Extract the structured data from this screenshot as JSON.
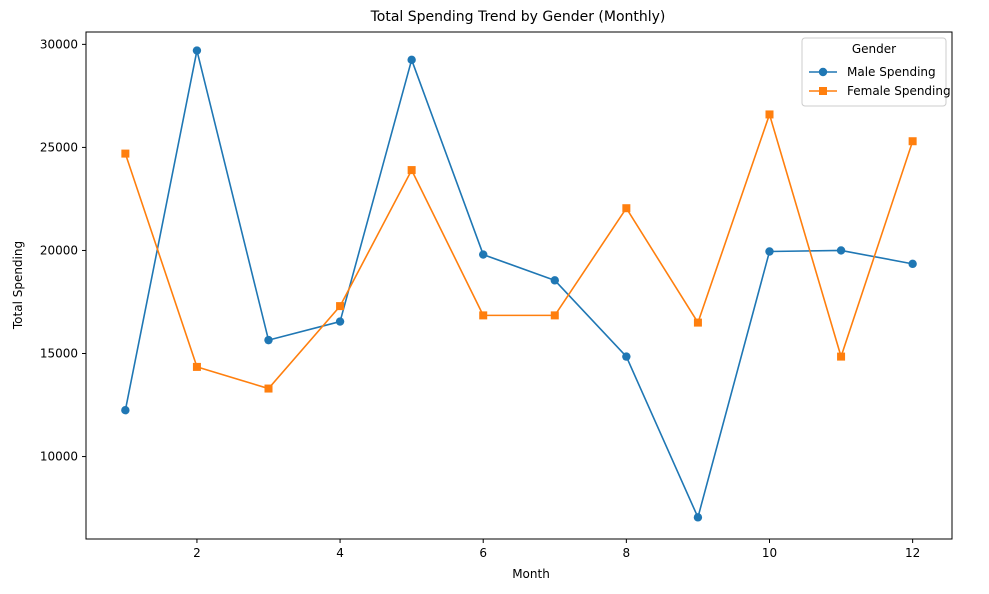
{
  "chart_data": {
    "type": "line",
    "title": "Total Spending Trend by Gender (Monthly)",
    "xlabel": "Month",
    "ylabel": "Total Spending",
    "xlim": [
      0.45,
      12.55
    ],
    "ylim": [
      6000,
      30600
    ],
    "xticks": [
      2,
      4,
      6,
      8,
      10,
      12
    ],
    "yticks": [
      10000,
      15000,
      20000,
      25000,
      30000
    ],
    "grid": false,
    "legend": {
      "title": "Gender",
      "placement": "top-right"
    },
    "x": [
      1,
      2,
      3,
      4,
      5,
      6,
      7,
      8,
      9,
      10,
      11,
      12
    ],
    "series": [
      {
        "name": "Male Spending",
        "color": "#1f77b4",
        "marker": "circle",
        "values": [
          12250,
          29700,
          15650,
          16550,
          29250,
          19800,
          18550,
          14850,
          7050,
          19950,
          20000,
          19350
        ]
      },
      {
        "name": "Female Spending",
        "color": "#ff7f0e",
        "marker": "square",
        "values": [
          24700,
          14350,
          13300,
          17300,
          23900,
          16850,
          16850,
          22050,
          16500,
          26600,
          14850,
          25300
        ]
      }
    ]
  }
}
